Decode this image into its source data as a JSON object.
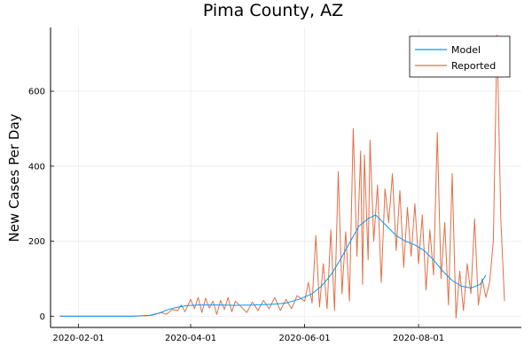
{
  "chart_data": {
    "type": "line",
    "title": "Pima County, AZ",
    "xlabel": "",
    "ylabel": "New Cases Per Day",
    "x_axis": {
      "kind": "date",
      "range": [
        "2020-01-17",
        "2020-09-25"
      ],
      "ticks": [
        "2020-02-01",
        "2020-04-01",
        "2020-06-01",
        "2020-08-01"
      ]
    },
    "ylim": [
      -30,
      770
    ],
    "yticks": [
      0,
      200,
      400,
      600
    ],
    "grid": true,
    "legend_position": "top-right",
    "series": [
      {
        "name": "Model",
        "color": "#009af9",
        "points": [
          [
            "2020-01-22",
            0
          ],
          [
            "2020-03-01",
            0
          ],
          [
            "2020-03-10",
            2
          ],
          [
            "2020-03-15",
            8
          ],
          [
            "2020-03-20",
            18
          ],
          [
            "2020-03-25",
            24
          ],
          [
            "2020-03-30",
            28
          ],
          [
            "2020-04-05",
            30
          ],
          [
            "2020-04-15",
            30
          ],
          [
            "2020-04-25",
            29
          ],
          [
            "2020-05-05",
            30
          ],
          [
            "2020-05-15",
            32
          ],
          [
            "2020-05-22",
            35
          ],
          [
            "2020-05-29",
            45
          ],
          [
            "2020-06-05",
            60
          ],
          [
            "2020-06-10",
            80
          ],
          [
            "2020-06-15",
            110
          ],
          [
            "2020-06-20",
            150
          ],
          [
            "2020-06-25",
            195
          ],
          [
            "2020-06-30",
            240
          ],
          [
            "2020-07-05",
            260
          ],
          [
            "2020-07-09",
            270
          ],
          [
            "2020-07-15",
            240
          ],
          [
            "2020-07-20",
            215
          ],
          [
            "2020-07-25",
            200
          ],
          [
            "2020-07-30",
            190
          ],
          [
            "2020-08-04",
            175
          ],
          [
            "2020-08-09",
            150
          ],
          [
            "2020-08-14",
            120
          ],
          [
            "2020-08-19",
            95
          ],
          [
            "2020-08-24",
            80
          ],
          [
            "2020-08-29",
            75
          ],
          [
            "2020-09-03",
            85
          ],
          [
            "2020-09-06",
            110
          ]
        ]
      },
      {
        "name": "Reported",
        "color": "#e26f46",
        "points": [
          [
            "2020-01-22",
            0
          ],
          [
            "2020-03-01",
            0
          ],
          [
            "2020-03-08",
            1
          ],
          [
            "2020-03-12",
            3
          ],
          [
            "2020-03-16",
            10
          ],
          [
            "2020-03-19",
            5
          ],
          [
            "2020-03-22",
            18
          ],
          [
            "2020-03-25",
            15
          ],
          [
            "2020-03-27",
            30
          ],
          [
            "2020-03-29",
            12
          ],
          [
            "2020-04-01",
            45
          ],
          [
            "2020-04-03",
            20
          ],
          [
            "2020-04-05",
            50
          ],
          [
            "2020-04-07",
            10
          ],
          [
            "2020-04-09",
            48
          ],
          [
            "2020-04-11",
            22
          ],
          [
            "2020-04-13",
            40
          ],
          [
            "2020-04-15",
            5
          ],
          [
            "2020-04-17",
            42
          ],
          [
            "2020-04-19",
            18
          ],
          [
            "2020-04-21",
            50
          ],
          [
            "2020-04-23",
            12
          ],
          [
            "2020-04-25",
            40
          ],
          [
            "2020-04-28",
            25
          ],
          [
            "2020-05-01",
            10
          ],
          [
            "2020-05-04",
            38
          ],
          [
            "2020-05-07",
            15
          ],
          [
            "2020-05-10",
            42
          ],
          [
            "2020-05-13",
            20
          ],
          [
            "2020-05-16",
            50
          ],
          [
            "2020-05-19",
            15
          ],
          [
            "2020-05-22",
            45
          ],
          [
            "2020-05-25",
            20
          ],
          [
            "2020-05-28",
            55
          ],
          [
            "2020-06-01",
            40
          ],
          [
            "2020-06-03",
            90
          ],
          [
            "2020-06-05",
            35
          ],
          [
            "2020-06-07",
            215
          ],
          [
            "2020-06-09",
            25
          ],
          [
            "2020-06-11",
            140
          ],
          [
            "2020-06-13",
            20
          ],
          [
            "2020-06-15",
            230
          ],
          [
            "2020-06-17",
            15
          ],
          [
            "2020-06-19",
            385
          ],
          [
            "2020-06-21",
            60
          ],
          [
            "2020-06-23",
            225
          ],
          [
            "2020-06-25",
            40
          ],
          [
            "2020-06-27",
            500
          ],
          [
            "2020-06-29",
            160
          ],
          [
            "2020-07-01",
            440
          ],
          [
            "2020-07-02",
            85
          ],
          [
            "2020-07-03",
            430
          ],
          [
            "2020-07-05",
            150
          ],
          [
            "2020-07-06",
            470
          ],
          [
            "2020-07-08",
            200
          ],
          [
            "2020-07-10",
            350
          ],
          [
            "2020-07-12",
            90
          ],
          [
            "2020-07-14",
            340
          ],
          [
            "2020-07-16",
            250
          ],
          [
            "2020-07-18",
            380
          ],
          [
            "2020-07-20",
            175
          ],
          [
            "2020-07-22",
            335
          ],
          [
            "2020-07-24",
            130
          ],
          [
            "2020-07-26",
            290
          ],
          [
            "2020-07-28",
            160
          ],
          [
            "2020-07-30",
            300
          ],
          [
            "2020-08-01",
            140
          ],
          [
            "2020-08-03",
            270
          ],
          [
            "2020-08-05",
            70
          ],
          [
            "2020-08-07",
            230
          ],
          [
            "2020-08-09",
            110
          ],
          [
            "2020-08-11",
            490
          ],
          [
            "2020-08-13",
            100
          ],
          [
            "2020-08-15",
            250
          ],
          [
            "2020-08-17",
            30
          ],
          [
            "2020-08-19",
            380
          ],
          [
            "2020-08-21",
            -5
          ],
          [
            "2020-08-23",
            120
          ],
          [
            "2020-08-25",
            15
          ],
          [
            "2020-08-27",
            140
          ],
          [
            "2020-08-29",
            60
          ],
          [
            "2020-08-31",
            260
          ],
          [
            "2020-09-02",
            30
          ],
          [
            "2020-09-04",
            100
          ],
          [
            "2020-09-06",
            50
          ],
          [
            "2020-09-08",
            90
          ],
          [
            "2020-09-10",
            200
          ],
          [
            "2020-09-12",
            750
          ],
          [
            "2020-09-14",
            260
          ],
          [
            "2020-09-16",
            40
          ]
        ]
      }
    ]
  }
}
